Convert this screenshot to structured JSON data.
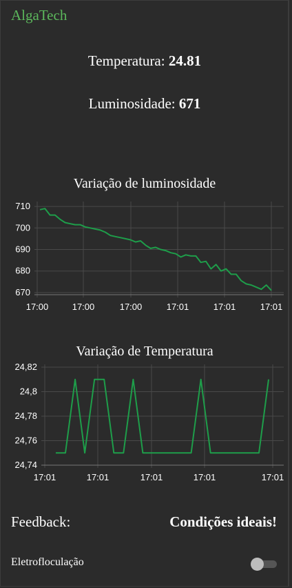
{
  "header": {
    "title": "AlgaTech"
  },
  "readouts": {
    "temperature_label": "Temperatura: ",
    "temperature_value": "24.81",
    "luminosity_label": "Luminosidade: ",
    "luminosity_value": "671"
  },
  "charts": {
    "luminosity": {
      "title": "Variação de luminosidade",
      "y_ticks": [
        "710",
        "700",
        "690",
        "680",
        "670"
      ],
      "x_ticks": [
        "17:00",
        "17:00",
        "17:00",
        "17:01",
        "17:01",
        "17:01"
      ]
    },
    "temperature": {
      "title": "Variação de Temperatura",
      "y_ticks": [
        "24,82",
        "24,8",
        "24,78",
        "24,76",
        "24,74"
      ],
      "x_ticks": [
        "17:01",
        "17:01",
        "17:01",
        "17:01",
        "17:01"
      ]
    }
  },
  "chart_data": [
    {
      "type": "line",
      "title": "Variação de luminosidade",
      "xlabel": "",
      "ylabel": "",
      "ylim": [
        669,
        711
      ],
      "grid": true,
      "color": "#1e9e4a",
      "values": [
        708.5,
        709,
        706,
        706,
        704,
        702.5,
        702,
        701.5,
        701.5,
        700.5,
        700,
        699.5,
        699,
        698,
        696.5,
        696,
        695.5,
        695,
        694.5,
        693.5,
        694,
        692,
        690.5,
        691,
        690,
        689.5,
        688.5,
        688,
        686.5,
        687.5,
        687,
        687,
        684,
        684.5,
        681,
        683,
        680,
        681,
        678.5,
        678.5,
        675.5,
        674,
        673.5,
        672.5,
        671.5,
        673.5,
        671
      ]
    },
    {
      "type": "line",
      "title": "Variação de Temperatura",
      "xlabel": "",
      "ylabel": "",
      "ylim": [
        24.74,
        24.82
      ],
      "grid": true,
      "color": "#1e9e4a",
      "values": [
        24.75,
        24.75,
        24.81,
        24.75,
        24.81,
        24.81,
        24.75,
        24.75,
        24.81,
        24.75,
        24.75,
        24.75,
        24.75,
        24.75,
        24.75,
        24.81,
        24.75,
        24.75,
        24.75,
        24.75,
        24.75,
        24.75,
        24.81
      ]
    }
  ],
  "feedback": {
    "label": "Feedback:",
    "value": "Condições ideais!"
  },
  "control": {
    "label": "Eletrofloculação"
  }
}
